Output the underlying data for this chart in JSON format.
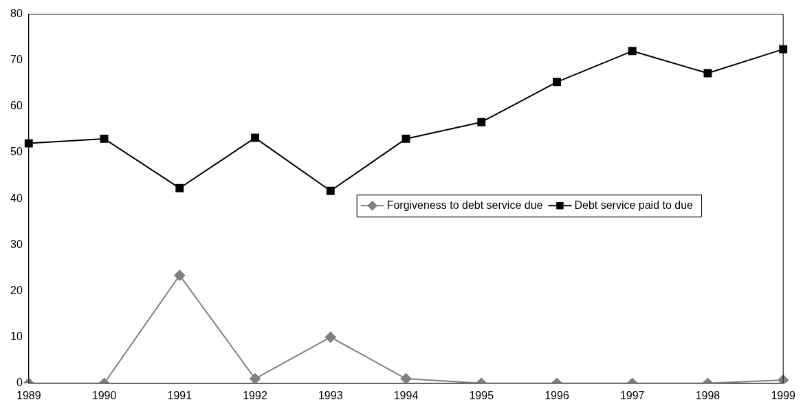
{
  "chart_data": {
    "type": "line",
    "categories": [
      "1989",
      "1990",
      "1991",
      "1992",
      "1993",
      "1994",
      "1995",
      "1996",
      "1997",
      "1998",
      "1999"
    ],
    "series": [
      {
        "name": "Forgiveness to debt service due",
        "color": "#808080",
        "marker": "diamond",
        "values": [
          0,
          0,
          23.4,
          1,
          10,
          1,
          0,
          0,
          0,
          0,
          0.7
        ]
      },
      {
        "name": "Debt service paid to due",
        "color": "#000000",
        "marker": "square",
        "values": [
          52,
          53,
          42.3,
          53.2,
          41.7,
          53,
          56.6,
          65.3,
          72,
          67.2,
          72.4
        ]
      }
    ],
    "ylim": [
      0,
      80
    ],
    "yticks": [
      0,
      10,
      20,
      30,
      40,
      50,
      60,
      70,
      80
    ],
    "grid": false,
    "legend": "center right",
    "line_style": "solid"
  }
}
